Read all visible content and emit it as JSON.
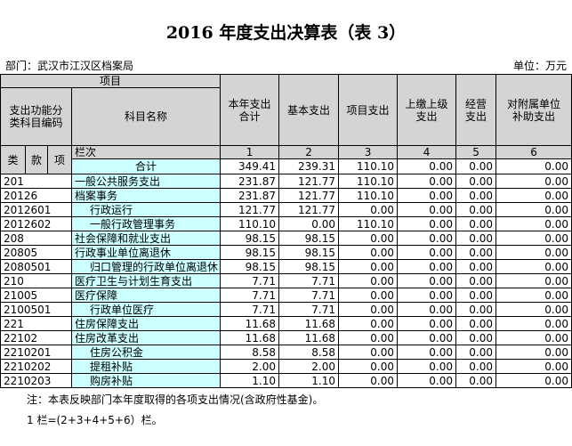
{
  "header": {
    "title": "2016 年度支出决算表（表 3）",
    "department": "部门：武汉市江汉区档案局",
    "unit": "单位：万元"
  },
  "table": {
    "item_label": "项目",
    "code_label": "支出功能分\n类科目编码",
    "name_label": "科目名称",
    "columns": [
      "本年支出\n合计",
      "基本支出",
      "项目支出",
      "上缴上级\n支出",
      "经营\n支出",
      "对附属单位\n补助支出"
    ],
    "code_parts": [
      "类",
      "款",
      "项"
    ],
    "index_label": "栏次",
    "column_numbers": [
      "1",
      "2",
      "3",
      "4",
      "5",
      "6"
    ],
    "total_label": "合计",
    "totals": [
      "349.41",
      "239.31",
      "110.10",
      "0.00",
      "0.00",
      "0.00"
    ],
    "rows": [
      [
        "201",
        "一般公共服务支出",
        "231.87",
        "121.77",
        "110.10",
        "0.00",
        "0.00",
        "0.00"
      ],
      [
        "20126",
        "档案事务",
        "231.87",
        "121.77",
        "110.10",
        "0.00",
        "0.00",
        "0.00"
      ],
      [
        "2012601",
        "行政运行",
        "121.77",
        "121.77",
        "0.00",
        "0.00",
        "0.00",
        "0.00"
      ],
      [
        "2012602",
        "一般行政管理事务",
        "110.10",
        "0.00",
        "110.10",
        "0.00",
        "0.00",
        "0.00"
      ],
      [
        "208",
        "社会保障和就业支出",
        "98.15",
        "98.15",
        "0.00",
        "0.00",
        "0.00",
        "0.00"
      ],
      [
        "20805",
        "行政事业单位离退休",
        "98.15",
        "98.15",
        "0.00",
        "0.00",
        "0.00",
        "0.00"
      ],
      [
        "2080501",
        "归口管理的行政单位离退休",
        "98.15",
        "98.15",
        "0.00",
        "0.00",
        "0.00",
        "0.00"
      ],
      [
        "210",
        "医疗卫生与计划生育支出",
        "7.71",
        "7.71",
        "0.00",
        "0.00",
        "0.00",
        "0.00"
      ],
      [
        "21005",
        "医疗保障",
        "7.71",
        "7.71",
        "0.00",
        "0.00",
        "0.00",
        "0.00"
      ],
      [
        "2100501",
        "行政单位医疗",
        "7.71",
        "7.71",
        "0.00",
        "0.00",
        "0.00",
        "0.00"
      ],
      [
        "221",
        "住房保障支出",
        "11.68",
        "11.68",
        "0.00",
        "0.00",
        "0.00",
        "0.00"
      ],
      [
        "22102",
        "住房改革支出",
        "11.68",
        "11.68",
        "0.00",
        "0.00",
        "0.00",
        "0.00"
      ],
      [
        "2210201",
        "住房公积金",
        "8.58",
        "8.58",
        "0.00",
        "0.00",
        "0.00",
        "0.00"
      ],
      [
        "2210202",
        "提租补贴",
        "2.00",
        "2.00",
        "0.00",
        "0.00",
        "0.00",
        "0.00"
      ],
      [
        "2210203",
        "购房补贴",
        "1.10",
        "1.10",
        "0.00",
        "0.00",
        "0.00",
        "0.00"
      ]
    ]
  },
  "notes": [
    "注：本表反映部门本年度取得的各项支出情况(含政府性基金)。",
    "1 栏=(2+3+4+5+6）栏。"
  ]
}
